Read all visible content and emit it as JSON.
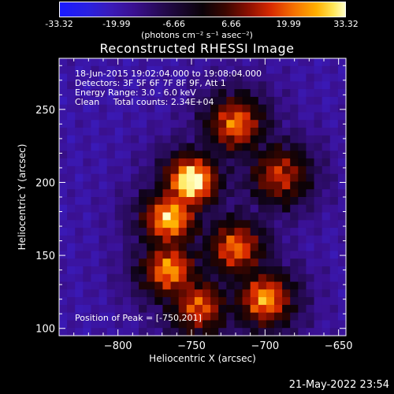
{
  "colorbar": {
    "ticks": [
      "-33.32",
      "-19.99",
      "-6.66",
      "6.66",
      "19.99",
      "33.32"
    ],
    "unit_label": "(photons cm⁻² s⁻¹ asec⁻²)",
    "range": [
      -33.32,
      33.32
    ]
  },
  "chart_data": {
    "type": "heatmap",
    "title": "Reconstructed RHESSI Image",
    "xlabel": "Heliocentric X (arcsec)",
    "ylabel": "Heliocentric Y (arcsec)",
    "xlim": [
      -840,
      -645
    ],
    "ylim": [
      95,
      285
    ],
    "xticks": [
      -800,
      -750,
      -700,
      -650
    ],
    "yticks": [
      100,
      150,
      200,
      250
    ],
    "annotations": [
      "18-Jun-2015 19:02:04.000 to 19:08:04.000",
      "Detectors: 3F 5F 6F 7F 8F 9F, Att 1",
      "Energy Range: 3.0 - 6.0 keV",
      "Clean     Total counts: 2.34E+04"
    ],
    "peak_label": "Position of Peak = [-750,201]",
    "peak": [
      -750,
      201
    ],
    "sources": [
      {
        "x": -750,
        "y": 201,
        "value": 33.3
      },
      {
        "x": -765,
        "y": 175,
        "value": 24
      },
      {
        "x": -720,
        "y": 240,
        "value": 16
      },
      {
        "x": -765,
        "y": 140,
        "value": 19
      },
      {
        "x": -720,
        "y": 155,
        "value": 15
      },
      {
        "x": -700,
        "y": 120,
        "value": 20
      },
      {
        "x": -745,
        "y": 115,
        "value": 13
      },
      {
        "x": -690,
        "y": 205,
        "value": 9
      }
    ]
  },
  "footer": {
    "timestamp": "21-May-2022 23:54"
  },
  "colors": {
    "frame": "#ffffff",
    "background": "#000000"
  }
}
